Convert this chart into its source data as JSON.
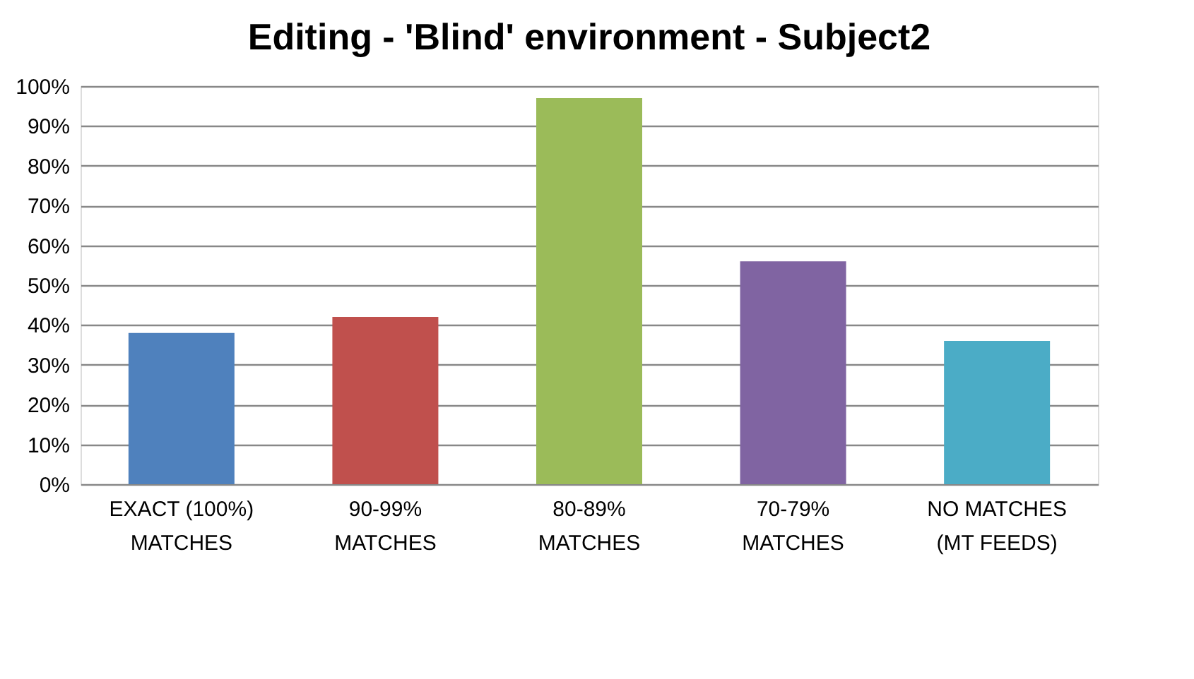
{
  "chart_data": {
    "type": "bar",
    "title": "Editing - 'Blind' environment - Subject2",
    "categories": [
      "EXACT (100%) MATCHES",
      "90-99% MATCHES",
      "80-89% MATCHES",
      "70-79% MATCHES",
      "NO MATCHES (MT FEEDS)"
    ],
    "values": [
      38,
      42,
      97,
      56,
      36
    ],
    "colors": [
      "#4f81bd",
      "#c0504d",
      "#9bbb59",
      "#8064a2",
      "#4bacc6"
    ],
    "ylim": [
      0,
      100
    ],
    "yticks": [
      {
        "value": 0,
        "label": "0%"
      },
      {
        "value": 10,
        "label": "10%"
      },
      {
        "value": 20,
        "label": "20%"
      },
      {
        "value": 30,
        "label": "30%"
      },
      {
        "value": 40,
        "label": "40%"
      },
      {
        "value": 50,
        "label": "50%"
      },
      {
        "value": 60,
        "label": "60%"
      },
      {
        "value": 70,
        "label": "70%"
      },
      {
        "value": 80,
        "label": "80%"
      },
      {
        "value": 90,
        "label": "90%"
      },
      {
        "value": 100,
        "label": "100%"
      }
    ],
    "grid": "y"
  }
}
